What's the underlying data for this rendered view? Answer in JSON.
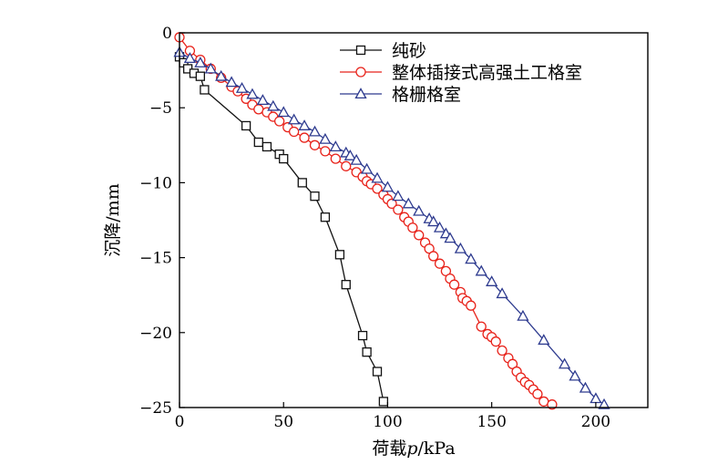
{
  "chart_data": {
    "type": "line",
    "xlabel_prefix": "荷载",
    "xlabel_var": "p",
    "xlabel_unit": "/kPa",
    "ylabel": "沉降/mm",
    "xlim": [
      0,
      225
    ],
    "ylim": [
      -25,
      0
    ],
    "x_ticks": [
      0,
      50,
      100,
      150,
      200
    ],
    "y_ticks": [
      0,
      -5,
      -10,
      -15,
      -20,
      -25
    ],
    "x_tick_labels": [
      "0",
      "50",
      "100",
      "150",
      "200"
    ],
    "y_tick_labels": [
      "0",
      "−5",
      "−10",
      "−15",
      "−20",
      "−25"
    ],
    "grid": false,
    "legend_position": "top-right",
    "series": [
      {
        "name": "纯砂",
        "marker": "square",
        "color": "#111111",
        "x": [
          0,
          2,
          4,
          7,
          10,
          12,
          32,
          38,
          42,
          48,
          50,
          59,
          65,
          70,
          77,
          80,
          88,
          90,
          95,
          98
        ],
        "y": [
          -1.6,
          -2.0,
          -2.4,
          -2.7,
          -2.9,
          -3.8,
          -6.2,
          -7.3,
          -7.6,
          -8.1,
          -8.4,
          -10.0,
          -10.9,
          -12.3,
          -14.8,
          -16.8,
          -20.2,
          -21.3,
          -22.6,
          -24.6
        ]
      },
      {
        "name": "整体插接式高强土工格室",
        "marker": "circle",
        "color": "#e8231b",
        "x": [
          0,
          5,
          10,
          15,
          20,
          25,
          28,
          32,
          35,
          38,
          42,
          45,
          48,
          52,
          55,
          60,
          65,
          70,
          75,
          80,
          85,
          88,
          90,
          92,
          95,
          98,
          100,
          102,
          105,
          108,
          110,
          112,
          115,
          118,
          120,
          122,
          125,
          128,
          130,
          132,
          135,
          136,
          138,
          140,
          145,
          148,
          150,
          152,
          155,
          158,
          160,
          162,
          164,
          166,
          168,
          170,
          172,
          175,
          179
        ],
        "y": [
          -0.3,
          -1.2,
          -1.8,
          -2.4,
          -3.0,
          -3.6,
          -3.9,
          -4.4,
          -4.8,
          -5.1,
          -5.3,
          -5.6,
          -5.9,
          -6.3,
          -6.6,
          -7.0,
          -7.5,
          -7.9,
          -8.4,
          -8.9,
          -9.3,
          -9.6,
          -9.9,
          -10.1,
          -10.4,
          -10.8,
          -11.1,
          -11.4,
          -11.8,
          -12.3,
          -12.6,
          -13.0,
          -13.5,
          -14.0,
          -14.4,
          -14.9,
          -15.4,
          -15.9,
          -16.4,
          -16.8,
          -17.3,
          -17.7,
          -17.9,
          -18.2,
          -19.6,
          -20.1,
          -20.3,
          -20.6,
          -21.2,
          -21.7,
          -22.1,
          -22.6,
          -23.0,
          -23.3,
          -23.5,
          -23.8,
          -24.1,
          -24.6,
          -24.8
        ]
      },
      {
        "name": "格栅格室",
        "marker": "triangle",
        "color": "#2e3b8f",
        "x": [
          0,
          5,
          10,
          15,
          20,
          25,
          30,
          35,
          40,
          45,
          50,
          55,
          60,
          65,
          70,
          75,
          80,
          82,
          85,
          90,
          95,
          100,
          105,
          110,
          115,
          120,
          122,
          125,
          128,
          130,
          135,
          140,
          145,
          150,
          155,
          165,
          175,
          185,
          190,
          195,
          200,
          204
        ],
        "y": [
          -1.3,
          -1.7,
          -2.0,
          -2.4,
          -2.9,
          -3.3,
          -3.7,
          -4.1,
          -4.5,
          -4.9,
          -5.3,
          -5.8,
          -6.2,
          -6.6,
          -7.1,
          -7.6,
          -8.0,
          -8.2,
          -8.5,
          -9.1,
          -9.7,
          -10.3,
          -10.9,
          -11.4,
          -11.9,
          -12.4,
          -12.6,
          -13.0,
          -13.4,
          -13.7,
          -14.4,
          -15.1,
          -15.9,
          -16.6,
          -17.4,
          -18.9,
          -20.5,
          -22.1,
          -22.9,
          -23.7,
          -24.4,
          -24.8
        ]
      }
    ]
  }
}
